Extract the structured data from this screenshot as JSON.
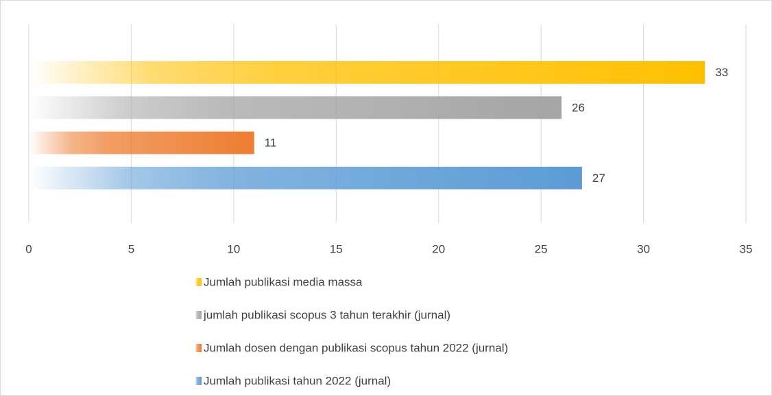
{
  "chart_data": {
    "type": "bar",
    "orientation": "horizontal",
    "series": [
      {
        "name": "Jumlah publikasi media massa",
        "color": "#ffc000",
        "values": [
          33
        ]
      },
      {
        "name": "jumlah publikasi scopus 3 tahun terakhir (jurnal)",
        "color": "#a5a5a5",
        "values": [
          26
        ]
      },
      {
        "name": "Jumlah dosen dengan publikasi scopus tahun 2022 (jurnal)",
        "color": "#ed7d31",
        "values": [
          11
        ]
      },
      {
        "name": "Jumlah publikasi tahun 2022 (jurnal)",
        "color": "#5b9bd5",
        "values": [
          27
        ]
      }
    ],
    "xlim": [
      0,
      35
    ],
    "xticks": [
      0,
      5,
      10,
      15,
      20,
      25,
      30,
      35
    ],
    "grid": true,
    "legend": "bottom"
  }
}
